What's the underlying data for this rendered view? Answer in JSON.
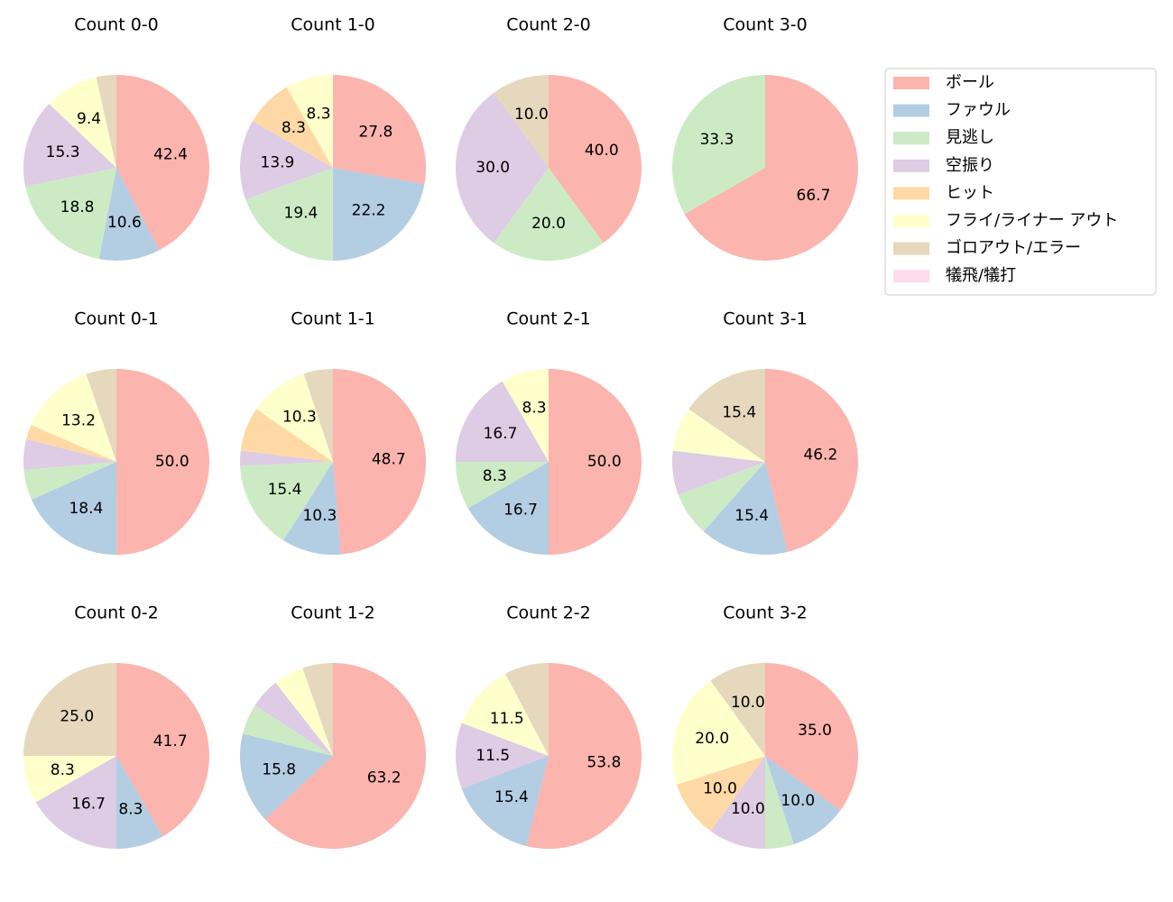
{
  "legend": {
    "labels": [
      "ボール",
      "ファウル",
      "見逃し",
      "空振り",
      "ヒット",
      "フライ/ライナー アウト",
      "ゴロアウト/エラー",
      "犠飛/犠打"
    ],
    "colors": [
      "#fbb4ae",
      "#b3cde3",
      "#ccebc5",
      "#decbe4",
      "#fed9a6",
      "#ffffcc",
      "#e5d8bd",
      "#fddaec"
    ]
  },
  "chart_data": [
    {
      "type": "pie",
      "title": "Count 0-0",
      "values": [
        42.4,
        10.6,
        18.8,
        15.3,
        0,
        9.4,
        3.5,
        0
      ],
      "value_labels": [
        "42.4",
        "10.6",
        "18.8",
        "15.3",
        null,
        "9.4",
        null,
        null
      ]
    },
    {
      "type": "pie",
      "title": "Count 1-0",
      "values": [
        27.8,
        22.2,
        19.4,
        13.9,
        8.3,
        8.3,
        0,
        0
      ],
      "value_labels": [
        "27.8",
        "22.2",
        "19.4",
        "13.9",
        "8.3",
        "8.3",
        null,
        null
      ]
    },
    {
      "type": "pie",
      "title": "Count 2-0",
      "values": [
        40,
        0,
        20,
        30,
        0,
        0,
        10,
        0
      ],
      "value_labels": [
        "40.0",
        null,
        "20.0",
        "30.0",
        null,
        null,
        "10.0",
        null
      ]
    },
    {
      "type": "pie",
      "title": "Count 3-0",
      "values": [
        66.7,
        0,
        33.3,
        0,
        0,
        0,
        0,
        0
      ],
      "value_labels": [
        "66.7",
        null,
        "33.3",
        null,
        null,
        null,
        null,
        null
      ]
    },
    {
      "type": "pie",
      "title": "Count 0-1",
      "values": [
        50,
        18.4,
        5.3,
        5.3,
        2.6,
        13.2,
        5.3,
        0
      ],
      "value_labels": [
        "50.0",
        "18.4",
        null,
        null,
        null,
        "13.2",
        null,
        null
      ]
    },
    {
      "type": "pie",
      "title": "Count 1-1",
      "values": [
        48.7,
        10.3,
        15.4,
        2.6,
        7.7,
        10.3,
        5.1,
        0
      ],
      "value_labels": [
        "48.7",
        "10.3",
        "15.4",
        null,
        null,
        "10.3",
        null,
        null
      ]
    },
    {
      "type": "pie",
      "title": "Count 2-1",
      "values": [
        50,
        16.7,
        8.3,
        16.7,
        0,
        8.3,
        0,
        0
      ],
      "value_labels": [
        "50.0",
        "16.7",
        "8.3",
        "16.7",
        null,
        "8.3",
        null,
        null
      ]
    },
    {
      "type": "pie",
      "title": "Count 3-1",
      "values": [
        46.2,
        15.4,
        7.7,
        7.7,
        0,
        7.7,
        15.4,
        0
      ],
      "value_labels": [
        "46.2",
        "15.4",
        null,
        null,
        null,
        null,
        "15.4",
        null
      ]
    },
    {
      "type": "pie",
      "title": "Count 0-2",
      "values": [
        41.7,
        8.3,
        0,
        16.7,
        0,
        8.3,
        25,
        0
      ],
      "value_labels": [
        "41.7",
        "8.3",
        null,
        "16.7",
        null,
        "8.3",
        "25.0",
        null
      ]
    },
    {
      "type": "pie",
      "title": "Count 1-2",
      "values": [
        63.2,
        15.8,
        5.3,
        5.3,
        0,
        5.3,
        5.3,
        0
      ],
      "value_labels": [
        "63.2",
        "15.8",
        null,
        null,
        null,
        null,
        null,
        null
      ]
    },
    {
      "type": "pie",
      "title": "Count 2-2",
      "values": [
        53.8,
        15.4,
        0,
        11.5,
        0,
        11.5,
        7.7,
        0
      ],
      "value_labels": [
        "53.8",
        "15.4",
        null,
        "11.5",
        null,
        "11.5",
        null,
        null
      ]
    },
    {
      "type": "pie",
      "title": "Count 3-2",
      "values": [
        35,
        10,
        5,
        10,
        10,
        20,
        10,
        0
      ],
      "value_labels": [
        "35.0",
        "10.0",
        null,
        "10.0",
        "10.0",
        "20.0",
        "10.0",
        null
      ]
    }
  ]
}
